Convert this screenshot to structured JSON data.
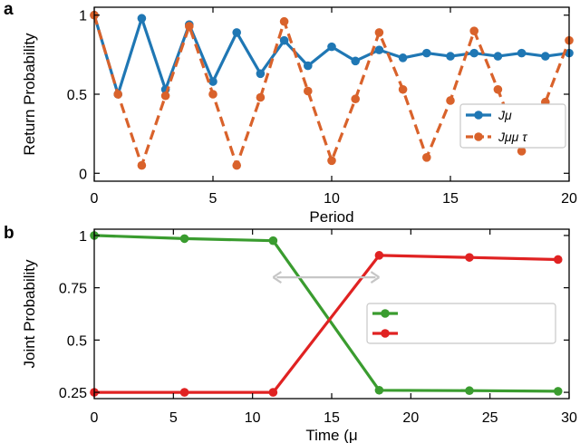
{
  "chart_data": [
    {
      "panel_label": "a",
      "type": "line",
      "xlabel": "Period",
      "ylabel": "Return Probability",
      "xlim": [
        0,
        20
      ],
      "ylim": [
        -0.05,
        1.05
      ],
      "xticks": [
        0,
        5,
        10,
        15,
        20
      ],
      "yticks": [
        0,
        0.5,
        1
      ],
      "ytick_labels": [
        "0",
        "0.5",
        "1"
      ],
      "legend_position": "right",
      "x": [
        0,
        1,
        2,
        3,
        4,
        5,
        6,
        7,
        8,
        9,
        10,
        11,
        12,
        13,
        14,
        15,
        16,
        17,
        18,
        19,
        20
      ],
      "series": [
        {
          "name": "Jμ",
          "color": "#1f77b4",
          "style": "solid",
          "values": [
            1.0,
            0.5,
            0.98,
            0.53,
            0.94,
            0.58,
            0.89,
            0.63,
            0.84,
            0.68,
            0.8,
            0.71,
            0.78,
            0.73,
            0.76,
            0.74,
            0.76,
            0.74,
            0.76,
            0.74,
            0.76
          ]
        },
        {
          "name": "Jμμ τ",
          "color": "#d9622b",
          "style": "dashed",
          "values": [
            1.0,
            0.5,
            0.05,
            0.49,
            0.93,
            0.5,
            0.05,
            0.48,
            0.96,
            0.52,
            0.08,
            0.47,
            0.89,
            0.53,
            0.1,
            0.46,
            0.9,
            0.53,
            0.14,
            0.45,
            0.84
          ]
        }
      ]
    },
    {
      "panel_label": "b",
      "type": "line",
      "xlabel": "Time (μ",
      "ylabel": "Joint Probability",
      "xlim": [
        0,
        30
      ],
      "ylim": [
        0.22,
        1.03
      ],
      "xticks": [
        0,
        5,
        10,
        15,
        20,
        25,
        30
      ],
      "yticks": [
        0.25,
        0.5,
        0.75,
        1
      ],
      "ytick_labels": [
        "0.25",
        "0.5",
        "0.75",
        "1"
      ],
      "legend_position": "right",
      "annotation": "double-headed arrow between x 11.3 and 18",
      "arrow_x": [
        11.3,
        18.0
      ],
      "arrow_y": 0.8,
      "series": [
        {
          "name": "",
          "color": "#3a9c2f",
          "x": [
            0,
            5.7,
            11.3,
            18.0,
            23.7,
            29.3
          ],
          "values": [
            1.0,
            0.985,
            0.975,
            0.26,
            0.258,
            0.255
          ]
        },
        {
          "name": "",
          "color": "#e02222",
          "x": [
            0,
            5.7,
            11.3,
            18.0,
            23.7,
            29.3
          ],
          "values": [
            0.25,
            0.25,
            0.25,
            0.905,
            0.895,
            0.885
          ]
        }
      ]
    }
  ]
}
